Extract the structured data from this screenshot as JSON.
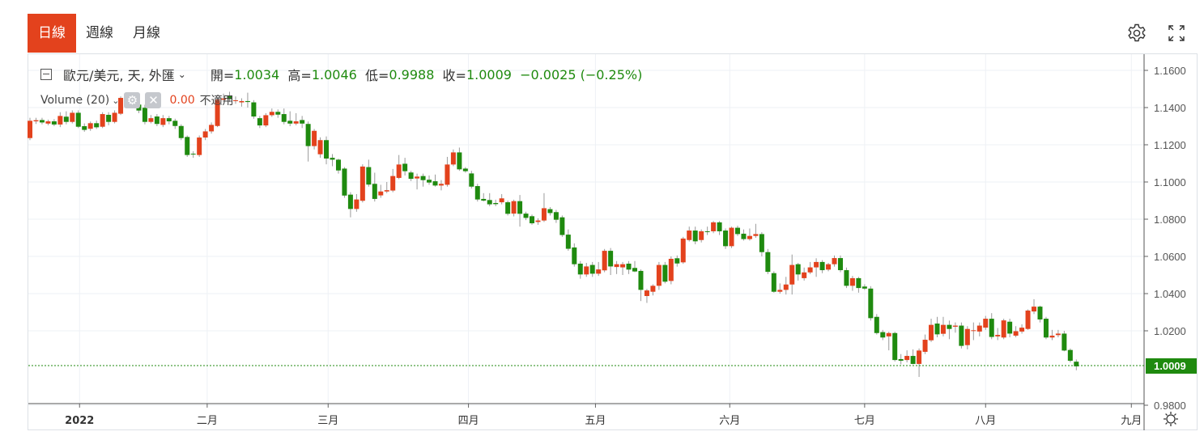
{
  "tabs": [
    {
      "label": "日線",
      "active": true
    },
    {
      "label": "週線",
      "active": false
    },
    {
      "label": "月線",
      "active": false
    }
  ],
  "toolbar": {
    "settings_icon": "gear-icon",
    "fullscreen_icon": "expand-icon"
  },
  "legend": {
    "collapse_icon": "minus-square-icon",
    "symbol": "歐元/美元, 天, 外匯",
    "open_label": "開=",
    "open": "1.0034",
    "high_label": "高=",
    "high": "1.0046",
    "low_label": "低=",
    "low": "0.9988",
    "close_label": "收=",
    "close": "1.0009",
    "change": "−0.0025 (−0.25%)"
  },
  "volume": {
    "label": "Volume (20)",
    "value": "0.00",
    "status": "不適用"
  },
  "colors": {
    "up": "#e3421d",
    "down": "#1f8a0f",
    "accent": "#e3421d",
    "last_price": "#1f8a0f"
  },
  "chart_data": {
    "type": "candlestick",
    "series": [
      {
        "name": "歐元/美元",
        "ohlc_order": [
          "open",
          "high",
          "low",
          "close"
        ]
      }
    ],
    "ylim": [
      0.98,
      1.165
    ],
    "y_ticks": [
      "1.1600",
      "1.1400",
      "1.1200",
      "1.1000",
      "1.0800",
      "1.0600",
      "1.0400",
      "1.0200",
      "0.9800"
    ],
    "x_ticks": [
      "2022",
      "二月",
      "三月",
      "四月",
      "五月",
      "六月",
      "七月",
      "八月",
      "九月"
    ],
    "last_price": "1.0009",
    "grid": true,
    "candles": [
      [
        1.1236,
        1.1345,
        1.1225,
        1.1329
      ],
      [
        1.1326,
        1.1345,
        1.1312,
        1.1332
      ],
      [
        1.1333,
        1.1345,
        1.131,
        1.132
      ],
      [
        1.1314,
        1.1335,
        1.1305,
        1.1326
      ],
      [
        1.1326,
        1.1338,
        1.13,
        1.1309
      ],
      [
        1.1309,
        1.1375,
        1.1295,
        1.1355
      ],
      [
        1.1351,
        1.138,
        1.131,
        1.1323
      ],
      [
        1.1323,
        1.1385,
        1.1315,
        1.1372
      ],
      [
        1.1372,
        1.1385,
        1.129,
        1.1297
      ],
      [
        1.13,
        1.1315,
        1.127,
        1.128
      ],
      [
        1.1286,
        1.1325,
        1.1275,
        1.1316
      ],
      [
        1.1316,
        1.133,
        1.1285,
        1.1294
      ],
      [
        1.1297,
        1.1375,
        1.129,
        1.1365
      ],
      [
        1.1361,
        1.1375,
        1.1305,
        1.1323
      ],
      [
        1.1323,
        1.1385,
        1.1315,
        1.1372
      ],
      [
        1.1367,
        1.146,
        1.136,
        1.1452
      ],
      [
        1.1442,
        1.1475,
        1.143,
        1.1457
      ],
      [
        1.1457,
        1.148,
        1.14,
        1.1416
      ],
      [
        1.1416,
        1.143,
        1.137,
        1.1384
      ],
      [
        1.1399,
        1.1415,
        1.131,
        1.1323
      ],
      [
        1.1323,
        1.136,
        1.1315,
        1.1343
      ],
      [
        1.1352,
        1.1365,
        1.13,
        1.1312
      ],
      [
        1.1307,
        1.136,
        1.1295,
        1.1343
      ],
      [
        1.1343,
        1.1355,
        1.131,
        1.1326
      ],
      [
        1.1329,
        1.134,
        1.1285,
        1.1301
      ],
      [
        1.1301,
        1.131,
        1.1225,
        1.1236
      ],
      [
        1.1242,
        1.125,
        1.1135,
        1.1145
      ],
      [
        1.1152,
        1.1165,
        1.113,
        1.1148
      ],
      [
        1.1145,
        1.125,
        1.1135,
        1.1239
      ],
      [
        1.1239,
        1.1285,
        1.1225,
        1.1272
      ],
      [
        1.1272,
        1.132,
        1.126,
        1.1307
      ],
      [
        1.1301,
        1.1455,
        1.1295,
        1.1442
      ],
      [
        1.1442,
        1.1475,
        1.143,
        1.1449
      ],
      [
        1.1464,
        1.1485,
        1.143,
        1.1445
      ],
      [
        1.1435,
        1.146,
        1.142,
        1.1439
      ],
      [
        1.1428,
        1.145,
        1.1405,
        1.1435
      ],
      [
        1.1435,
        1.148,
        1.14,
        1.143
      ],
      [
        1.1428,
        1.144,
        1.134,
        1.1352
      ],
      [
        1.1343,
        1.1355,
        1.129,
        1.1304
      ],
      [
        1.1304,
        1.137,
        1.1295,
        1.1359
      ],
      [
        1.1359,
        1.1395,
        1.135,
        1.1377
      ],
      [
        1.1377,
        1.139,
        1.1345,
        1.1362
      ],
      [
        1.1365,
        1.1395,
        1.131,
        1.1323
      ],
      [
        1.1329,
        1.138,
        1.13,
        1.1314
      ],
      [
        1.1314,
        1.137,
        1.1305,
        1.1326
      ],
      [
        1.1333,
        1.1355,
        1.129,
        1.1314
      ],
      [
        1.1312,
        1.1325,
        1.111,
        1.1193
      ],
      [
        1.1193,
        1.1285,
        1.1175,
        1.1275
      ],
      [
        1.1149,
        1.124,
        1.113,
        1.1225
      ],
      [
        1.1225,
        1.1245,
        1.1095,
        1.1126
      ],
      [
        1.113,
        1.115,
        1.1085,
        1.112
      ],
      [
        1.112,
        1.1125,
        1.1045,
        1.1062
      ],
      [
        1.1072,
        1.108,
        1.0915,
        1.0927
      ],
      [
        1.0932,
        1.0945,
        1.081,
        1.0855
      ],
      [
        1.0855,
        1.0935,
        1.084,
        1.0906
      ],
      [
        1.0899,
        1.1095,
        1.089,
        1.1083
      ],
      [
        1.108,
        1.112,
        1.0975,
        1.0986
      ],
      [
        1.099,
        1.105,
        1.0895,
        1.0909
      ],
      [
        1.0928,
        1.0985,
        1.0915,
        1.0949
      ],
      [
        1.0949,
        1.1,
        1.094,
        1.0956
      ],
      [
        1.0954,
        1.107,
        1.0945,
        1.1032
      ],
      [
        1.1022,
        1.1145,
        1.1015,
        1.1094
      ],
      [
        1.1098,
        1.113,
        1.1035,
        1.1058
      ],
      [
        1.1051,
        1.106,
        1.1005,
        1.1017
      ],
      [
        1.1019,
        1.1045,
        1.096,
        1.1029
      ],
      [
        1.1032,
        1.1045,
        1.0975,
        1.101
      ],
      [
        1.1012,
        1.1035,
        1.0985,
        1.0997
      ],
      [
        1.1004,
        1.104,
        1.0975,
        1.0981
      ],
      [
        1.0981,
        1.101,
        1.0955,
        1.099
      ],
      [
        1.0985,
        1.1135,
        1.0975,
        1.1094
      ],
      [
        1.1094,
        1.1175,
        1.1085,
        1.1159
      ],
      [
        1.1159,
        1.1185,
        1.106,
        1.1068
      ],
      [
        1.1072,
        1.108,
        1.105,
        1.1058
      ],
      [
        1.1046,
        1.106,
        1.0965,
        1.0975
      ],
      [
        1.0978,
        1.099,
        1.0895,
        1.0906
      ],
      [
        1.0909,
        1.094,
        1.0895,
        1.09
      ],
      [
        1.0903,
        1.094,
        1.087,
        1.088
      ],
      [
        1.0887,
        1.0905,
        1.087,
        1.0881
      ],
      [
        1.0891,
        1.0935,
        1.088,
        1.0912
      ],
      [
        1.0891,
        1.09,
        1.082,
        1.0829
      ],
      [
        1.083,
        1.0905,
        1.0815,
        1.0897
      ],
      [
        1.0897,
        1.093,
        1.076,
        1.0829
      ],
      [
        1.083,
        1.084,
        1.0795,
        1.0807
      ],
      [
        1.0816,
        1.0825,
        1.077,
        1.0778
      ],
      [
        1.0785,
        1.0805,
        1.077,
        1.0793
      ],
      [
        1.0793,
        1.094,
        1.0785,
        1.0859
      ],
      [
        1.0854,
        1.0865,
        1.082,
        1.0833
      ],
      [
        1.0838,
        1.085,
        1.078,
        1.0797
      ],
      [
        1.081,
        1.082,
        1.0705,
        1.0715
      ],
      [
        1.0717,
        1.0745,
        1.063,
        1.0641
      ],
      [
        1.0648,
        1.067,
        1.0545,
        1.0558
      ],
      [
        1.0561,
        1.0575,
        1.048,
        1.0503
      ],
      [
        1.0503,
        1.0565,
        1.049,
        1.0546
      ],
      [
        1.0554,
        1.057,
        1.049,
        1.0507
      ],
      [
        1.0507,
        1.057,
        1.0495,
        1.053
      ],
      [
        1.0525,
        1.064,
        1.0515,
        1.063
      ],
      [
        1.063,
        1.0645,
        1.05,
        1.0546
      ],
      [
        1.0543,
        1.0575,
        1.0505,
        1.0558
      ],
      [
        1.0541,
        1.057,
        1.05,
        1.0558
      ],
      [
        1.0561,
        1.0575,
        1.0505,
        1.0529
      ],
      [
        1.0538,
        1.0575,
        1.0515,
        1.0519
      ],
      [
        1.0522,
        1.053,
        1.036,
        1.042
      ],
      [
        1.0387,
        1.0425,
        1.035,
        1.0417
      ],
      [
        1.041,
        1.045,
        1.039,
        1.0442
      ],
      [
        1.0442,
        1.057,
        1.042,
        1.0554
      ],
      [
        1.0554,
        1.057,
        1.0455,
        1.0464
      ],
      [
        1.0468,
        1.06,
        1.045,
        1.0587
      ],
      [
        1.059,
        1.0605,
        1.0545,
        1.0562
      ],
      [
        1.0568,
        1.0705,
        1.056,
        1.0696
      ],
      [
        1.0688,
        1.076,
        1.068,
        1.0739
      ],
      [
        1.0739,
        1.076,
        1.0665,
        1.0681
      ],
      [
        1.0688,
        1.0745,
        1.0675,
        1.0735
      ],
      [
        1.0735,
        1.076,
        1.0715,
        1.0734
      ],
      [
        1.0735,
        1.079,
        1.0725,
        1.0783
      ],
      [
        1.0783,
        1.079,
        1.0715,
        1.0735
      ],
      [
        1.0739,
        1.075,
        1.064,
        1.0655
      ],
      [
        1.0655,
        1.076,
        1.0645,
        1.0754
      ],
      [
        1.0754,
        1.0765,
        1.071,
        1.072
      ],
      [
        1.0722,
        1.0745,
        1.0685,
        1.0693
      ],
      [
        1.0693,
        1.075,
        1.0685,
        1.071
      ],
      [
        1.071,
        1.0775,
        1.07,
        1.072
      ],
      [
        1.072,
        1.073,
        1.06,
        1.0623
      ],
      [
        1.0623,
        1.064,
        1.0505,
        1.0517
      ],
      [
        1.051,
        1.052,
        1.0405,
        1.041
      ],
      [
        1.041,
        1.0455,
        1.04,
        1.042
      ],
      [
        1.042,
        1.049,
        1.0395,
        1.0449
      ],
      [
        1.0449,
        1.061,
        1.0395,
        1.0554
      ],
      [
        1.0558,
        1.0565,
        1.047,
        1.0503
      ],
      [
        1.0483,
        1.054,
        1.047,
        1.0514
      ],
      [
        1.0514,
        1.057,
        1.0505,
        1.0541
      ],
      [
        1.0541,
        1.059,
        1.049,
        1.057
      ],
      [
        1.057,
        1.058,
        1.051,
        1.0526
      ],
      [
        1.0529,
        1.0565,
        1.052,
        1.0558
      ],
      [
        1.0558,
        1.0605,
        1.0545,
        1.0591
      ],
      [
        1.0591,
        1.0605,
        1.0515,
        1.0526
      ],
      [
        1.0526,
        1.054,
        1.043,
        1.0442
      ],
      [
        1.0442,
        1.0495,
        1.0415,
        1.0483
      ],
      [
        1.0483,
        1.049,
        1.0405,
        1.043
      ],
      [
        1.0438,
        1.045,
        1.042,
        1.0427
      ],
      [
        1.0427,
        1.044,
        1.0255,
        1.0268
      ],
      [
        1.0275,
        1.029,
        1.018,
        1.0188
      ],
      [
        1.0193,
        1.0205,
        1.015,
        1.0164
      ],
      [
        1.017,
        1.0195,
        1.0095,
        1.0188
      ],
      [
        1.0188,
        1.0195,
        1.0035,
        1.0043
      ],
      [
        1.0048,
        1.0075,
        1.002,
        1.0039
      ],
      [
        1.0043,
        1.0095,
        1.003,
        1.0065
      ],
      [
        1.0065,
        1.01,
        1.002,
        1.0022
      ],
      [
        1.0022,
        1.0105,
        0.9952,
        1.0094
      ],
      [
        1.0087,
        1.018,
        1.0075,
        1.0152
      ],
      [
        1.0149,
        1.0265,
        1.014,
        1.0232
      ],
      [
        1.0239,
        1.0275,
        1.0165,
        1.0181
      ],
      [
        1.0184,
        1.0275,
        1.017,
        1.0232
      ],
      [
        1.0232,
        1.0255,
        1.0155,
        1.021
      ],
      [
        1.0222,
        1.0245,
        1.019,
        1.0228
      ],
      [
        1.0228,
        1.0245,
        1.0105,
        1.0119
      ],
      [
        1.0123,
        1.0225,
        1.01,
        1.021
      ],
      [
        1.0203,
        1.0245,
        1.015,
        1.0203
      ],
      [
        1.0196,
        1.0245,
        1.017,
        1.0228
      ],
      [
        1.0217,
        1.028,
        1.0205,
        1.0265
      ],
      [
        1.0265,
        1.0295,
        1.0155,
        1.0167
      ],
      [
        1.017,
        1.0215,
        1.015,
        1.0178
      ],
      [
        1.0164,
        1.0265,
        1.0155,
        1.0256
      ],
      [
        1.0249,
        1.0265,
        1.0165,
        1.0185
      ],
      [
        1.0174,
        1.0225,
        1.0165,
        1.0198
      ],
      [
        1.0196,
        1.0235,
        1.0185,
        1.0217
      ],
      [
        1.021,
        1.0315,
        1.0205,
        1.0309
      ],
      [
        1.0304,
        1.037,
        1.029,
        1.033
      ],
      [
        1.033,
        1.0335,
        1.0245,
        1.0261
      ],
      [
        1.0265,
        1.0275,
        1.0155,
        1.0164
      ],
      [
        1.0164,
        1.0205,
        1.015,
        1.0174
      ],
      [
        1.0177,
        1.0205,
        1.0165,
        1.0185
      ],
      [
        1.0185,
        1.02,
        1.009,
        1.0094
      ],
      [
        1.0097,
        1.0105,
        1.003,
        1.0039
      ],
      [
        1.0034,
        1.0046,
        0.9988,
        1.0009
      ]
    ]
  }
}
